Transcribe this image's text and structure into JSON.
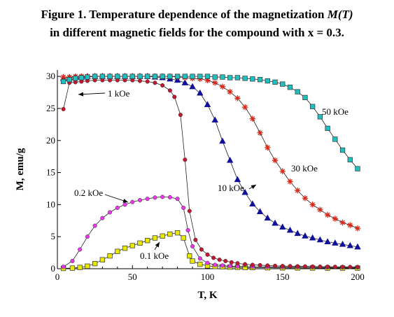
{
  "figure": {
    "title_line1_prefix": "Figure 1. Temperature dependence of the magnetization ",
    "title_line1_italic": "M(T)",
    "title_line2": "in different magnetic fields for the compound with x = 0.3."
  },
  "chart_data": {
    "type": "line",
    "title": "Figure 1. Temperature dependence of the magnetization M(T) in different magnetic fields for the compound with x = 0.3.",
    "xlabel": "T, K",
    "ylabel": "M, emu/g",
    "xlim": [
      0,
      200
    ],
    "ylim": [
      0,
      31
    ],
    "xticks": [
      0,
      50,
      100,
      150,
      200
    ],
    "yticks": [
      0,
      5,
      10,
      15,
      20,
      25,
      30
    ],
    "grid": false,
    "legend": "none (series labeled directly on curves)",
    "series": [
      {
        "name": "0.1 kOe",
        "marker": "square",
        "color": "#e8e800",
        "x": [
          4,
          10,
          15,
          20,
          25,
          30,
          35,
          40,
          45,
          50,
          55,
          60,
          65,
          70,
          75,
          80,
          84,
          88,
          90,
          95,
          100,
          105,
          110,
          115,
          120,
          125,
          130,
          140,
          150,
          160,
          170,
          180,
          190,
          200
        ],
        "y": [
          0.05,
          0.1,
          0.2,
          0.4,
          0.8,
          1.4,
          2.0,
          2.7,
          3.2,
          3.6,
          4.0,
          4.4,
          4.8,
          5.1,
          5.4,
          5.6,
          4.8,
          2.0,
          1.2,
          0.7,
          0.45,
          0.35,
          0.3,
          0.25,
          0.22,
          0.2,
          0.18,
          0.15,
          0.13,
          0.12,
          0.11,
          0.1,
          0.1,
          0.1
        ]
      },
      {
        "name": "0.2 kOe",
        "marker": "circle",
        "color": "#e838e8",
        "x": [
          4,
          10,
          15,
          20,
          25,
          30,
          35,
          40,
          45,
          50,
          55,
          60,
          65,
          70,
          75,
          80,
          84,
          87,
          90,
          95,
          100,
          105,
          110,
          115,
          120,
          130,
          140,
          150,
          160,
          170,
          180,
          190,
          200
        ],
        "y": [
          0.3,
          1.2,
          3.0,
          5.0,
          6.7,
          7.9,
          8.8,
          9.5,
          10.0,
          10.4,
          10.7,
          10.9,
          11.1,
          11.2,
          11.15,
          10.9,
          9.5,
          6.0,
          3.5,
          1.6,
          0.9,
          0.6,
          0.5,
          0.4,
          0.35,
          0.3,
          0.28,
          0.25,
          0.24,
          0.22,
          0.2,
          0.2,
          0.2
        ]
      },
      {
        "name": "1 kOe",
        "marker": "circle",
        "color": "#c01830",
        "x": [
          4,
          8,
          12,
          16,
          20,
          25,
          30,
          35,
          40,
          45,
          50,
          55,
          60,
          65,
          70,
          75,
          78,
          82,
          85,
          88,
          92,
          96,
          100,
          104,
          108,
          112,
          116,
          120,
          125,
          130,
          135,
          140,
          145,
          150,
          155,
          160,
          165,
          170,
          175,
          180,
          185,
          190,
          195,
          200
        ],
        "y": [
          24.9,
          29.0,
          29.1,
          29.2,
          29.3,
          29.4,
          29.4,
          29.4,
          29.4,
          29.4,
          29.4,
          29.3,
          29.2,
          29.0,
          28.6,
          27.8,
          26.8,
          24.0,
          17.0,
          9.0,
          4.5,
          3.0,
          2.2,
          1.7,
          1.4,
          1.2,
          1.0,
          0.85,
          0.7,
          0.6,
          0.55,
          0.5,
          0.45,
          0.42,
          0.4,
          0.38,
          0.36,
          0.34,
          0.32,
          0.31,
          0.3,
          0.29,
          0.28,
          0.27
        ]
      },
      {
        "name": "10 kOe",
        "marker": "triangle",
        "color": "#10109a",
        "x": [
          4,
          8,
          12,
          16,
          20,
          25,
          30,
          35,
          40,
          45,
          50,
          55,
          60,
          65,
          70,
          75,
          80,
          85,
          90,
          95,
          100,
          105,
          110,
          115,
          120,
          125,
          130,
          135,
          140,
          145,
          150,
          155,
          160,
          165,
          170,
          175,
          180,
          185,
          190,
          195,
          200
        ],
        "y": [
          29.7,
          29.8,
          29.9,
          29.9,
          30.0,
          30.0,
          30.0,
          30.0,
          30.0,
          30.0,
          30.0,
          30.0,
          30.0,
          29.9,
          29.8,
          29.6,
          29.4,
          29.0,
          28.4,
          27.4,
          25.6,
          23.2,
          19.9,
          16.9,
          13.9,
          11.9,
          10.1,
          8.9,
          7.9,
          7.1,
          6.5,
          6.0,
          5.5,
          5.1,
          4.8,
          4.5,
          4.2,
          4.0,
          3.8,
          3.6,
          3.4
        ]
      },
      {
        "name": "30 kOe",
        "marker": "asterisk",
        "color": "#d82818",
        "x": [
          4,
          8,
          12,
          16,
          20,
          25,
          30,
          35,
          40,
          45,
          50,
          55,
          60,
          65,
          70,
          75,
          80,
          85,
          90,
          95,
          100,
          105,
          110,
          115,
          120,
          125,
          130,
          135,
          140,
          145,
          150,
          155,
          160,
          165,
          170,
          175,
          180,
          185,
          190,
          195,
          200
        ],
        "y": [
          29.9,
          29.9,
          30.0,
          30.0,
          30.0,
          30.0,
          30.0,
          30.0,
          30.0,
          30.0,
          30.0,
          30.0,
          30.0,
          30.0,
          30.0,
          30.0,
          29.9,
          29.8,
          29.7,
          29.6,
          29.4,
          29.0,
          28.4,
          27.6,
          26.6,
          25.2,
          23.4,
          21.2,
          18.9,
          16.9,
          15.2,
          13.6,
          12.2,
          11.0,
          10.0,
          9.2,
          8.4,
          7.8,
          7.2,
          6.8,
          6.3
        ]
      },
      {
        "name": "50 kOe",
        "marker": "square",
        "color": "#20c0c0",
        "x": [
          4,
          8,
          12,
          16,
          20,
          25,
          30,
          35,
          40,
          45,
          50,
          55,
          60,
          65,
          70,
          75,
          80,
          85,
          90,
          95,
          100,
          105,
          110,
          115,
          120,
          125,
          130,
          135,
          140,
          145,
          150,
          155,
          160,
          165,
          170,
          175,
          180,
          185,
          190,
          195,
          200
        ],
        "y": [
          29.2,
          29.5,
          29.7,
          29.8,
          29.9,
          30.0,
          30.0,
          30.0,
          30.0,
          30.0,
          30.0,
          30.0,
          30.0,
          30.0,
          30.0,
          30.0,
          30.0,
          30.0,
          30.0,
          30.0,
          30.0,
          29.9,
          29.9,
          29.8,
          29.8,
          29.7,
          29.6,
          29.5,
          29.3,
          29.1,
          28.8,
          28.3,
          27.6,
          26.7,
          25.3,
          23.7,
          21.9,
          20.2,
          18.5,
          17.0,
          15.6
        ]
      }
    ],
    "annotations": [
      {
        "text": "1 kOe",
        "series": "1 kOe"
      },
      {
        "text": "0.2 kOe",
        "series": "0.2 kOe"
      },
      {
        "text": "0.1 kOe",
        "series": "0.1 kOe"
      },
      {
        "text": "10 kOe",
        "series": "10 kOe"
      },
      {
        "text": "30 kOe",
        "series": "30 kOe"
      },
      {
        "text": "50 kOe",
        "series": "50 kOe"
      }
    ]
  }
}
